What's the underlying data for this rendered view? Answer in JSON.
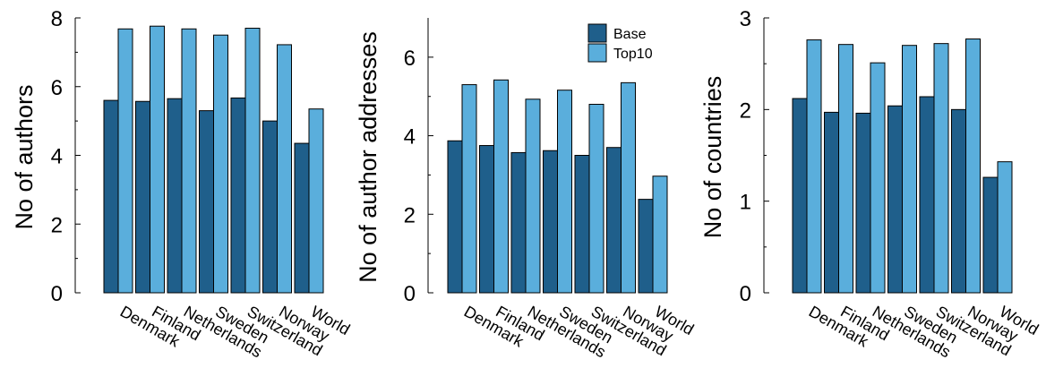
{
  "colors": {
    "base": "#1f5f8b",
    "top10": "#5aaedc",
    "edge": "#000000"
  },
  "legend": {
    "position": "top-right",
    "entries": [
      "Base",
      "Top10"
    ]
  },
  "chart_data": [
    {
      "type": "bar",
      "categories": [
        "Denmark",
        "Finland",
        "Netherlands",
        "Sweden",
        "Switzerland",
        "Norway",
        "World"
      ],
      "series": [
        {
          "name": "Base",
          "values": [
            5.6,
            5.57,
            5.65,
            5.3,
            5.67,
            5.0,
            4.35
          ]
        },
        {
          "name": "Top10",
          "values": [
            7.68,
            7.76,
            7.68,
            7.5,
            7.7,
            7.22,
            5.35
          ]
        }
      ],
      "title": "",
      "xlabel": "",
      "ylabel": "No of authors",
      "ylim": [
        0,
        8
      ],
      "yticks": [
        0,
        2,
        4,
        6,
        8
      ],
      "ytick_labels": [
        "0",
        "2",
        "4",
        "6",
        "8"
      ],
      "grid": false
    },
    {
      "type": "bar",
      "categories": [
        "Denmark",
        "Finland",
        "Netherlands",
        "Sweden",
        "Switzerland",
        "Norway",
        "World"
      ],
      "series": [
        {
          "name": "Base",
          "values": [
            3.87,
            3.75,
            3.57,
            3.62,
            3.5,
            3.7,
            2.38
          ]
        },
        {
          "name": "Top10",
          "values": [
            5.3,
            5.42,
            4.93,
            5.16,
            4.8,
            5.35,
            2.97
          ]
        }
      ],
      "title": "",
      "xlabel": "",
      "ylabel": "No of author addresses",
      "ylim": [
        0,
        7
      ],
      "yticks": [
        0,
        2,
        4,
        6
      ],
      "ytick_labels": [
        "0",
        "2",
        "4",
        "6"
      ],
      "grid": false
    },
    {
      "type": "bar",
      "categories": [
        "Denmark",
        "Finland",
        "Netherlands",
        "Sweden",
        "Switzerland",
        "Norway",
        "World"
      ],
      "series": [
        {
          "name": "Base",
          "values": [
            2.12,
            1.97,
            1.96,
            2.04,
            2.14,
            2.0,
            1.26
          ]
        },
        {
          "name": "Top10",
          "values": [
            2.76,
            2.71,
            2.51,
            2.7,
            2.72,
            2.77,
            1.43
          ]
        }
      ],
      "title": "",
      "xlabel": "",
      "ylabel": "No of countries",
      "ylim": [
        0,
        3
      ],
      "yticks": [
        0,
        1,
        2,
        3
      ],
      "ytick_labels": [
        "0",
        "1",
        "2",
        "3"
      ],
      "grid": false
    }
  ]
}
